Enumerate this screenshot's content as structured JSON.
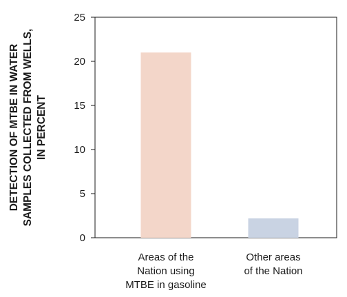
{
  "chart_data": {
    "type": "bar",
    "categories": [
      [
        "Areas of the",
        "Nation using",
        "MTBE in gasoline"
      ],
      [
        "Other areas",
        "of the Nation"
      ]
    ],
    "values": [
      21,
      2.2
    ],
    "bar_colors": [
      "#f3d6c9",
      "#c9d3e3"
    ],
    "ylabel": [
      "DETECTION OF MTBE IN WATER",
      "SAMPLES COLLECTED FROM WELLS,",
      "IN PERCENT"
    ],
    "ylim": [
      0,
      25
    ],
    "yticks": [
      0,
      5,
      10,
      15,
      20,
      25
    ],
    "grid": false
  }
}
